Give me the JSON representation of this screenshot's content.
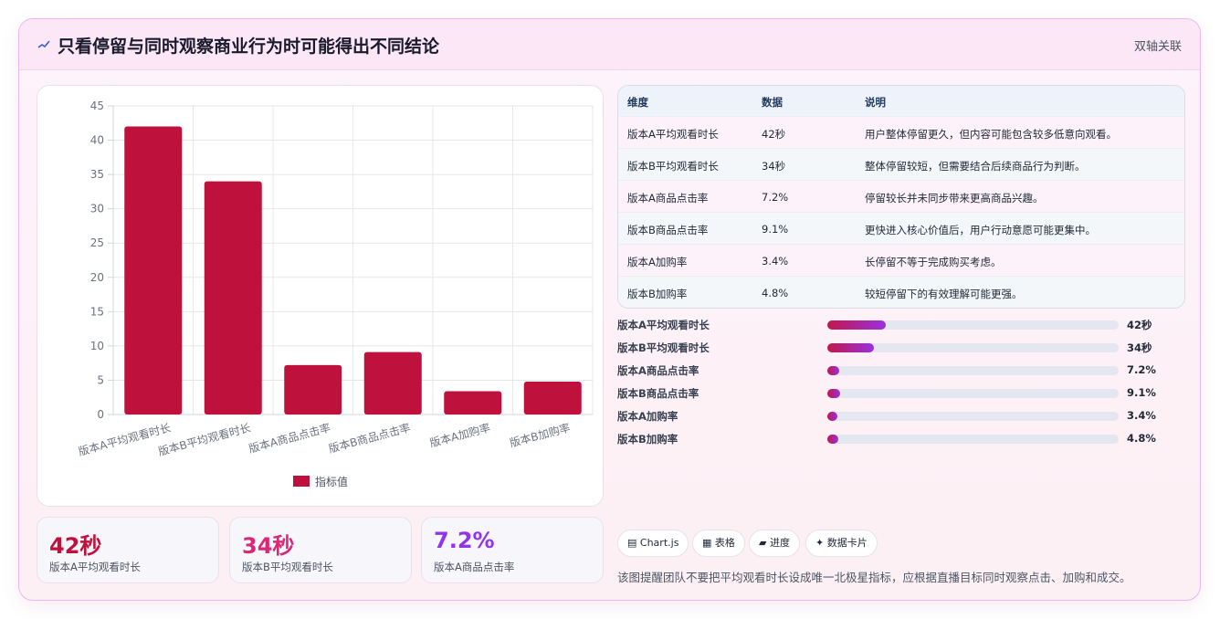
{
  "header": {
    "icon": "trend-line-icon",
    "title": "只看停留与同时观察商业行为时可能得出不同结论",
    "badge": "双轴关联"
  },
  "chart_data": {
    "type": "bar",
    "categories": [
      "版本A平均观看时长",
      "版本B平均观看时长",
      "版本A商品点击率",
      "版本B商品点击率",
      "版本A加购率",
      "版本B加购率"
    ],
    "series": [
      {
        "name": "指标值",
        "values": [
          42,
          34,
          7.2,
          9.1,
          3.4,
          4.8
        ],
        "color": "#be123c"
      }
    ],
    "ylim": [
      0,
      45
    ],
    "yticks": [
      0,
      5,
      10,
      15,
      20,
      25,
      30,
      35,
      40,
      45
    ],
    "grid": true,
    "legend_position": "bottom"
  },
  "stats": [
    {
      "value": "42秒",
      "label": "版本A平均观看时长",
      "color": "#be123c"
    },
    {
      "value": "34秒",
      "label": "版本B平均观看时长",
      "color": "#db2777"
    },
    {
      "value": "7.2%",
      "label": "版本A商品点击率",
      "color": "#9333ea"
    }
  ],
  "table": {
    "headers": [
      "维度",
      "数据",
      "说明"
    ],
    "rows": [
      [
        "版本A平均观看时长",
        "42秒",
        "用户整体停留更久，但内容可能包含较多低意向观看。"
      ],
      [
        "版本B平均观看时长",
        "34秒",
        "整体停留较短，但需要结合后续商品行为判断。"
      ],
      [
        "版本A商品点击率",
        "7.2%",
        "停留较长并未同步带来更高商品兴趣。"
      ],
      [
        "版本B商品点击率",
        "9.1%",
        "更快进入核心价值后，用户行动意愿可能更集中。"
      ],
      [
        "版本A加购率",
        "3.4%",
        "长停留不等于完成购买考虑。"
      ],
      [
        "版本B加购率",
        "4.8%",
        "较短停留下的有效理解可能更强。"
      ]
    ],
    "row_colors": [
      "#fdf2fa",
      "#f4f7fa"
    ]
  },
  "progress": [
    {
      "label": "版本A平均观看时长",
      "value_text": "42秒",
      "fraction": 0.2
    },
    {
      "label": "版本B平均观看时长",
      "value_text": "34秒",
      "fraction": 0.16
    },
    {
      "label": "版本A商品点击率",
      "value_text": "7.2%",
      "fraction": 0.04
    },
    {
      "label": "版本B商品点击率",
      "value_text": "9.1%",
      "fraction": 0.045
    },
    {
      "label": "版本A加购率",
      "value_text": "3.4%",
      "fraction": 0.035
    },
    {
      "label": "版本B加购率",
      "value_text": "4.8%",
      "fraction": 0.038
    }
  ],
  "tags": [
    {
      "icon": "chart-icon",
      "glyph": "▤",
      "label": "Chart.js"
    },
    {
      "icon": "table-icon",
      "glyph": "▦",
      "label": "表格"
    },
    {
      "icon": "progress-icon",
      "glyph": "▰",
      "label": "进度"
    },
    {
      "icon": "sparkle-icon",
      "glyph": "✦",
      "label": "数据卡片"
    }
  ],
  "footer_note": "该图提醒团队不要把平均观看时长设成唯一北极星指标，应根据直播目标同时观察点击、加购和成交。"
}
